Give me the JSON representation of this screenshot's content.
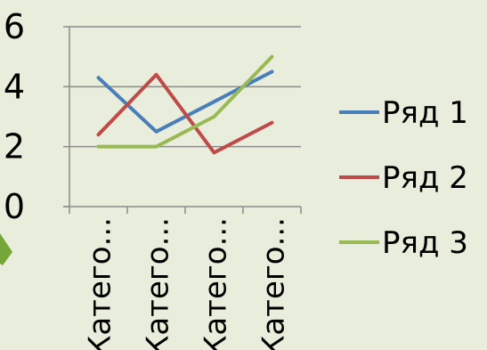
{
  "chart_data": {
    "type": "line",
    "categories": [
      "Катего...",
      "Катего...",
      "Катего...",
      "Катего..."
    ],
    "series": [
      {
        "name": "Ряд 1",
        "values": [
          4.3,
          2.5,
          3.5,
          4.5
        ],
        "color": "#4a7ebb"
      },
      {
        "name": "Ряд 2",
        "values": [
          2.4,
          4.4,
          1.8,
          2.8
        ],
        "color": "#be4b48"
      },
      {
        "name": "Ряд 3",
        "values": [
          2.0,
          2.0,
          3.0,
          5.0
        ],
        "color": "#98b954"
      }
    ],
    "ylim": [
      0,
      6
    ],
    "yticks": [
      0,
      2,
      4,
      6
    ],
    "grid": true,
    "legend_position": "right",
    "background_color": "#e8eedb",
    "axis_color": "#8c8c8c",
    "text_color": "#000000"
  }
}
